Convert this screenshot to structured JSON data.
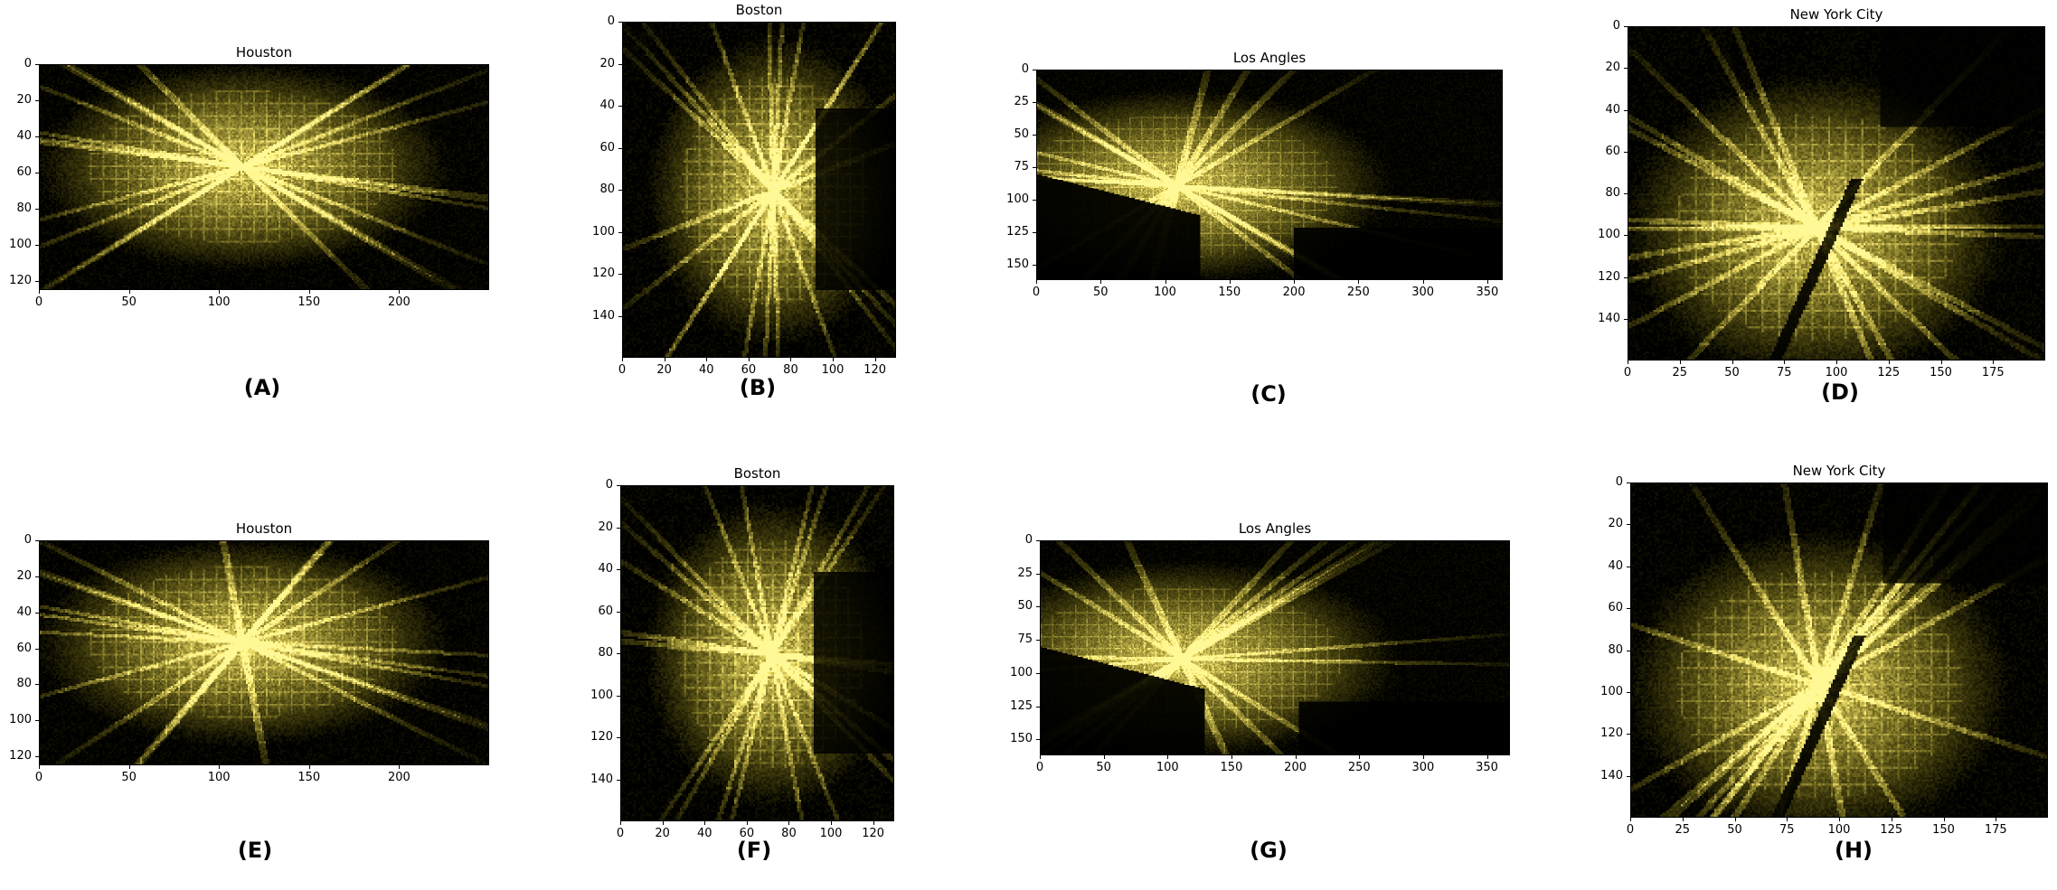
{
  "accent_color": "#f2ec8c",
  "background_color": "#000000",
  "panels": [
    {
      "id": "A",
      "title": "Houston",
      "label": "(A)",
      "xticks": [
        "0",
        "50",
        "100",
        "150",
        "200"
      ],
      "xtick_values": [
        0,
        50,
        100,
        150,
        200
      ],
      "xmax": 250,
      "yticks": [
        "0",
        "20",
        "40",
        "60",
        "80",
        "100",
        "120"
      ],
      "ytick_values": [
        0,
        20,
        40,
        60,
        80,
        100,
        120
      ],
      "ymax": 125,
      "seed": 11
    },
    {
      "id": "B",
      "title": "Boston",
      "label": "(B)",
      "xticks": [
        "0",
        "20",
        "40",
        "60",
        "80",
        "100",
        "120"
      ],
      "xtick_values": [
        0,
        20,
        40,
        60,
        80,
        100,
        120
      ],
      "xmax": 130,
      "yticks": [
        "0",
        "20",
        "40",
        "60",
        "80",
        "100",
        "120",
        "140"
      ],
      "ytick_values": [
        0,
        20,
        40,
        60,
        80,
        100,
        120,
        140
      ],
      "ymax": 160,
      "seed": 23
    },
    {
      "id": "C",
      "title": "Los Angles",
      "label": "(C)",
      "xticks": [
        "0",
        "50",
        "100",
        "150",
        "200",
        "250",
        "300",
        "350"
      ],
      "xtick_values": [
        0,
        50,
        100,
        150,
        200,
        250,
        300,
        350
      ],
      "xmax": 362,
      "yticks": [
        "0",
        "25",
        "50",
        "75",
        "100",
        "125",
        "150"
      ],
      "ytick_values": [
        0,
        25,
        50,
        75,
        100,
        125,
        150
      ],
      "ymax": 162,
      "seed": 37
    },
    {
      "id": "D",
      "title": "New York City",
      "label": "(D)",
      "xticks": [
        "0",
        "25",
        "50",
        "75",
        "100",
        "125",
        "150",
        "175"
      ],
      "xtick_values": [
        0,
        25,
        50,
        75,
        100,
        125,
        150,
        175
      ],
      "xmax": 200,
      "yticks": [
        "0",
        "20",
        "40",
        "60",
        "80",
        "100",
        "120",
        "140"
      ],
      "ytick_values": [
        0,
        20,
        40,
        60,
        80,
        100,
        120,
        140
      ],
      "ymax": 160,
      "seed": 41
    },
    {
      "id": "E",
      "title": "Houston",
      "label": "(E)",
      "xticks": [
        "0",
        "50",
        "100",
        "150",
        "200"
      ],
      "xtick_values": [
        0,
        50,
        100,
        150,
        200
      ],
      "xmax": 250,
      "yticks": [
        "0",
        "20",
        "40",
        "60",
        "80",
        "100",
        "120"
      ],
      "ytick_values": [
        0,
        20,
        40,
        60,
        80,
        100,
        120
      ],
      "ymax": 125,
      "seed": 53
    },
    {
      "id": "F",
      "title": "Boston",
      "label": "(F)",
      "xticks": [
        "0",
        "20",
        "40",
        "60",
        "80",
        "100",
        "120"
      ],
      "xtick_values": [
        0,
        20,
        40,
        60,
        80,
        100,
        120
      ],
      "xmax": 130,
      "yticks": [
        "0",
        "20",
        "40",
        "60",
        "80",
        "100",
        "120",
        "140"
      ],
      "ytick_values": [
        0,
        20,
        40,
        60,
        80,
        100,
        120,
        140
      ],
      "ymax": 160,
      "seed": 67
    },
    {
      "id": "G",
      "title": "Los Angles",
      "label": "(G)",
      "xticks": [
        "0",
        "50",
        "100",
        "150",
        "200",
        "250",
        "300",
        "350"
      ],
      "xtick_values": [
        0,
        50,
        100,
        150,
        200,
        250,
        300,
        350
      ],
      "xmax": 368,
      "yticks": [
        "0",
        "25",
        "50",
        "75",
        "100",
        "125",
        "150"
      ],
      "ytick_values": [
        0,
        25,
        50,
        75,
        100,
        125,
        150
      ],
      "ymax": 162,
      "seed": 71
    },
    {
      "id": "H",
      "title": "New York City",
      "label": "(H)",
      "xticks": [
        "0",
        "25",
        "50",
        "75",
        "100",
        "125",
        "150",
        "175"
      ],
      "xtick_values": [
        0,
        25,
        50,
        75,
        100,
        125,
        150,
        175
      ],
      "xmax": 200,
      "yticks": [
        "0",
        "20",
        "40",
        "60",
        "80",
        "100",
        "120",
        "140"
      ],
      "ytick_values": [
        0,
        20,
        40,
        60,
        80,
        100,
        120,
        140
      ],
      "ymax": 160,
      "seed": 83
    }
  ]
}
